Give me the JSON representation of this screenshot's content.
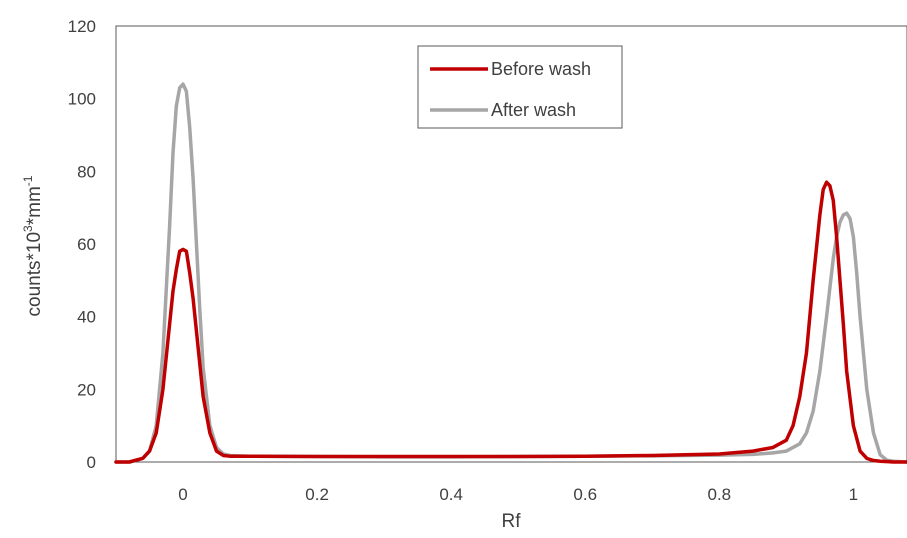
{
  "chart_data": {
    "type": "line",
    "title": "",
    "xlabel": "Rf",
    "ylabel_main": "counts*10",
    "ylabel_sup1": "3",
    "ylabel_mid": "*mm",
    "ylabel_sup2": "-1",
    "xlim": [
      -0.1,
      1.08
    ],
    "ylim": [
      0,
      120
    ],
    "x_ticks": [
      {
        "value": 0,
        "label": "0"
      },
      {
        "value": 0.2,
        "label": "0.2"
      },
      {
        "value": 0.4,
        "label": "0.4"
      },
      {
        "value": 0.6,
        "label": "0.6"
      },
      {
        "value": 0.8,
        "label": "0.8"
      },
      {
        "value": 1,
        "label": "1"
      }
    ],
    "y_ticks": [
      {
        "value": 0,
        "label": "0"
      },
      {
        "value": 20,
        "label": "20"
      },
      {
        "value": 40,
        "label": "40"
      },
      {
        "value": 60,
        "label": "60"
      },
      {
        "value": 80,
        "label": "80"
      },
      {
        "value": 100,
        "label": "100"
      },
      {
        "value": 120,
        "label": "120"
      }
    ],
    "grid": false,
    "legend_position": "top-center",
    "series": [
      {
        "name": "Before wash",
        "color": "#c00000",
        "x": [
          -0.1,
          -0.08,
          -0.06,
          -0.05,
          -0.04,
          -0.03,
          -0.02,
          -0.015,
          -0.01,
          -0.005,
          0,
          0.005,
          0.01,
          0.015,
          0.02,
          0.025,
          0.03,
          0.04,
          0.05,
          0.06,
          0.07,
          0.1,
          0.2,
          0.3,
          0.4,
          0.5,
          0.6,
          0.7,
          0.8,
          0.85,
          0.88,
          0.9,
          0.91,
          0.92,
          0.93,
          0.94,
          0.95,
          0.955,
          0.96,
          0.965,
          0.97,
          0.975,
          0.98,
          0.985,
          0.99,
          1.0,
          1.01,
          1.02,
          1.03,
          1.04,
          1.06,
          1.08
        ],
        "values": [
          0,
          0,
          1,
          3,
          8,
          20,
          38,
          47,
          53,
          58,
          58.5,
          58,
          52,
          45,
          36,
          27,
          18,
          8,
          3,
          1.8,
          1.6,
          1.6,
          1.5,
          1.5,
          1.5,
          1.5,
          1.6,
          1.8,
          2.2,
          3,
          4,
          6,
          10,
          18,
          30,
          50,
          68,
          75,
          77,
          76,
          72,
          62,
          50,
          38,
          25,
          10,
          3,
          1,
          0.4,
          0.2,
          0,
          0
        ]
      },
      {
        "name": "After wash",
        "color": "#a6a6a6",
        "x": [
          -0.1,
          -0.08,
          -0.06,
          -0.05,
          -0.04,
          -0.03,
          -0.02,
          -0.015,
          -0.01,
          -0.005,
          0,
          0.005,
          0.01,
          0.015,
          0.02,
          0.025,
          0.03,
          0.04,
          0.05,
          0.06,
          0.07,
          0.1,
          0.2,
          0.3,
          0.4,
          0.5,
          0.6,
          0.7,
          0.8,
          0.85,
          0.88,
          0.9,
          0.92,
          0.93,
          0.94,
          0.95,
          0.96,
          0.97,
          0.975,
          0.98,
          0.985,
          0.99,
          0.995,
          1.0,
          1.005,
          1.01,
          1.02,
          1.03,
          1.04,
          1.05,
          1.06,
          1.08
        ],
        "values": [
          0,
          0,
          1,
          3,
          10,
          30,
          65,
          85,
          98,
          103,
          104,
          102,
          92,
          78,
          60,
          42,
          26,
          10,
          4,
          2.2,
          1.8,
          1.6,
          1.5,
          1.4,
          1.4,
          1.5,
          1.6,
          1.7,
          1.9,
          2.1,
          2.5,
          3,
          5,
          8,
          14,
          25,
          40,
          56,
          62,
          66,
          68,
          68.5,
          67,
          62,
          52,
          40,
          20,
          8,
          2,
          0.5,
          0.2,
          0
        ]
      }
    ]
  }
}
